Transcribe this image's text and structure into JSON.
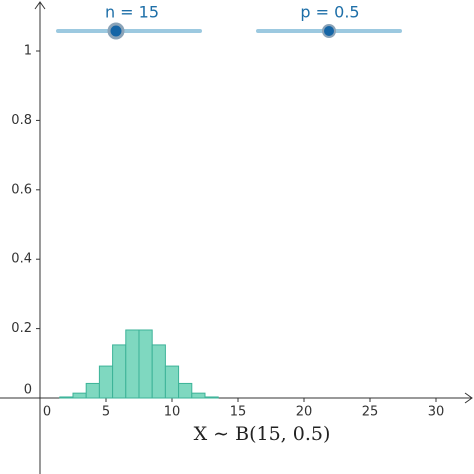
{
  "chart_data": {
    "type": "bar",
    "x": [
      0,
      1,
      2,
      3,
      4,
      5,
      6,
      7,
      8,
      9,
      10,
      11,
      12,
      13,
      14,
      15
    ],
    "values": [
      0,
      0,
      0.003,
      0.014,
      0.042,
      0.092,
      0.153,
      0.196,
      0.196,
      0.153,
      0.092,
      0.042,
      0.014,
      0.003,
      0,
      0
    ],
    "color": "#7fd8c0",
    "xlim": [
      -3.03,
      32.88
    ],
    "ylim": [
      -0.219,
      1.147
    ],
    "xticks": [
      0,
      5,
      10,
      15,
      20,
      25,
      30
    ],
    "yticks": [
      0,
      0.2,
      0.4,
      0.6,
      0.8,
      1
    ],
    "formula": "X ∼ B(15, 0.5)",
    "sliders": [
      {
        "label": "n = 15"
      },
      {
        "label": "p = 0.5"
      }
    ]
  }
}
